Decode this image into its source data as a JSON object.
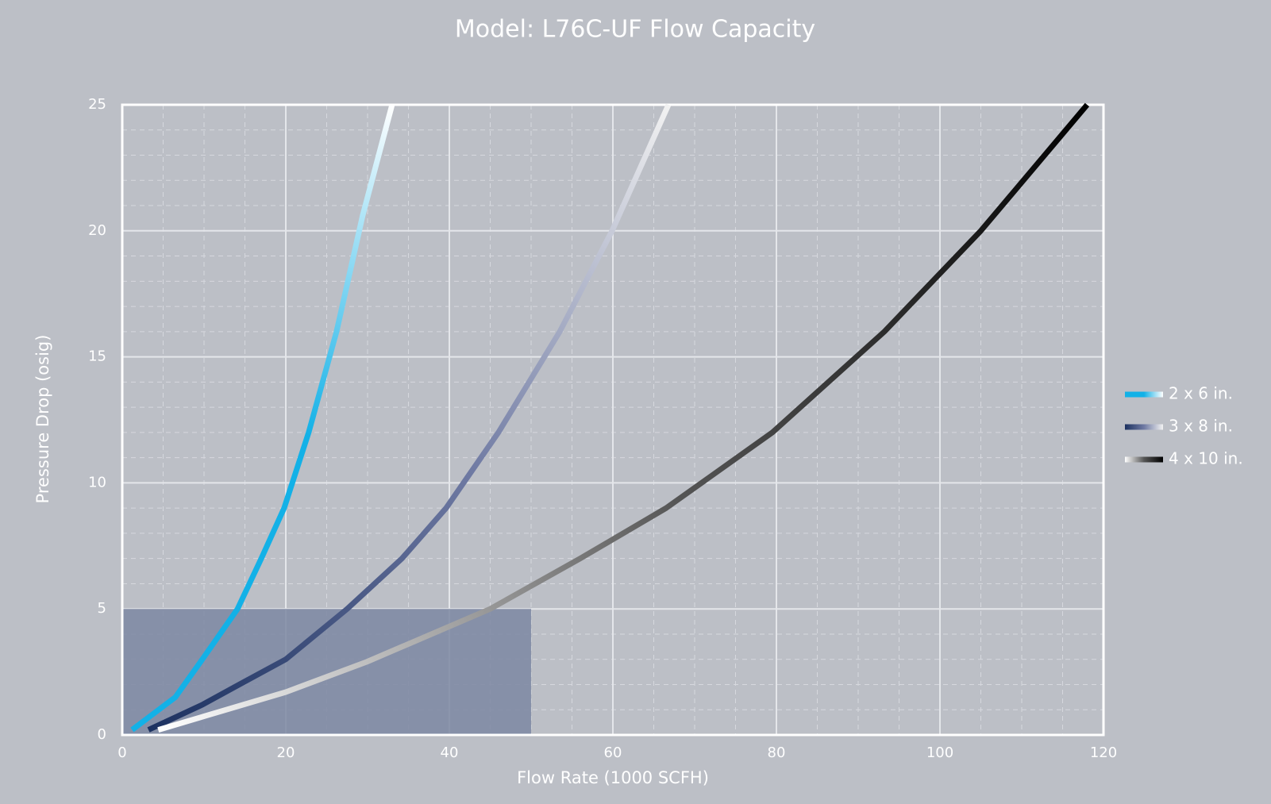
{
  "chart_data": {
    "type": "line",
    "title": "Model: L76C-UF Flow Capacity",
    "x_label": "Flow Rate (1000 SCFH)",
    "y_label": "Pressure Drop (osig)",
    "xlim": [
      0,
      120
    ],
    "xticks": [
      0,
      20,
      40,
      60,
      80,
      100,
      120
    ],
    "ylim": [
      0,
      25
    ],
    "yticks": [
      0,
      5,
      10,
      15,
      20,
      25
    ],
    "grid": true,
    "minor_grid": {
      "x_divisions": 4,
      "y_divisions": 5
    },
    "legend": "right",
    "shaded_region": {
      "x": [
        0,
        50
      ],
      "y": [
        0,
        5
      ],
      "color": "#7c87a2"
    },
    "series": [
      {
        "name": "2 x 6 in.",
        "colors": [
          "#13b1e7",
          "#13b1e7",
          "#ffffff"
        ],
        "x": [
          1.2,
          6.5,
          9.8,
          14.1,
          17,
          19.8,
          22.8,
          26.2,
          29.4,
          33
        ],
        "values": [
          0.2,
          1.5,
          3,
          5,
          7,
          9,
          12,
          16,
          20.6,
          25
        ]
      },
      {
        "name": "3 x 8 in.",
        "colors": [
          "#1c3160",
          "#6f7aa3",
          "#f2f2f2"
        ],
        "x": [
          3.2,
          9.8,
          14.3,
          20,
          27.5,
          34.2,
          39.6,
          46,
          53.5,
          59.9,
          66.8
        ],
        "values": [
          0.2,
          1.2,
          2,
          3,
          5,
          7,
          9,
          12,
          16,
          20,
          25
        ]
      },
      {
        "name": "4 x 10 in.",
        "colors": [
          "#ffffff",
          "#555555",
          "#000000"
        ],
        "x": [
          4.4,
          20,
          29.9,
          45,
          56,
          66.5,
          79.5,
          93.2,
          105,
          118
        ],
        "values": [
          0.2,
          1.7,
          2.9,
          5,
          7,
          9,
          12,
          16,
          20,
          25
        ]
      }
    ]
  }
}
